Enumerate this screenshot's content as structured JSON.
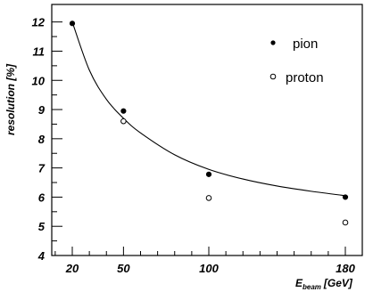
{
  "chart_data": {
    "type": "scatter",
    "xlabel": "E",
    "xlabel_sub": "beam",
    "xlabel_unit": "[GeV]",
    "ylabel": "resolution [%]",
    "xlim": [
      0,
      200
    ],
    "ylim": [
      4,
      12.6
    ],
    "x_ticks": [
      20,
      50,
      100,
      180
    ],
    "y_ticks": [
      4,
      5,
      6,
      7,
      8,
      9,
      10,
      11,
      12
    ],
    "legend_position": "top-right",
    "series": [
      {
        "name": "pion",
        "marker": "filled-circle",
        "x": [
          20,
          50,
          100,
          180
        ],
        "y": [
          11.95,
          8.95,
          6.78,
          6.0
        ]
      },
      {
        "name": "proton",
        "marker": "open-circle",
        "x": [
          50,
          100,
          180
        ],
        "y": [
          8.6,
          5.97,
          5.13
        ]
      }
    ],
    "fit_curve": {
      "type": "line",
      "x": [
        20,
        30,
        40,
        50,
        60,
        80,
        100,
        120,
        140,
        160,
        180
      ],
      "y": [
        12.0,
        10.35,
        9.35,
        8.7,
        8.2,
        7.45,
        6.95,
        6.62,
        6.38,
        6.2,
        6.05
      ]
    }
  }
}
